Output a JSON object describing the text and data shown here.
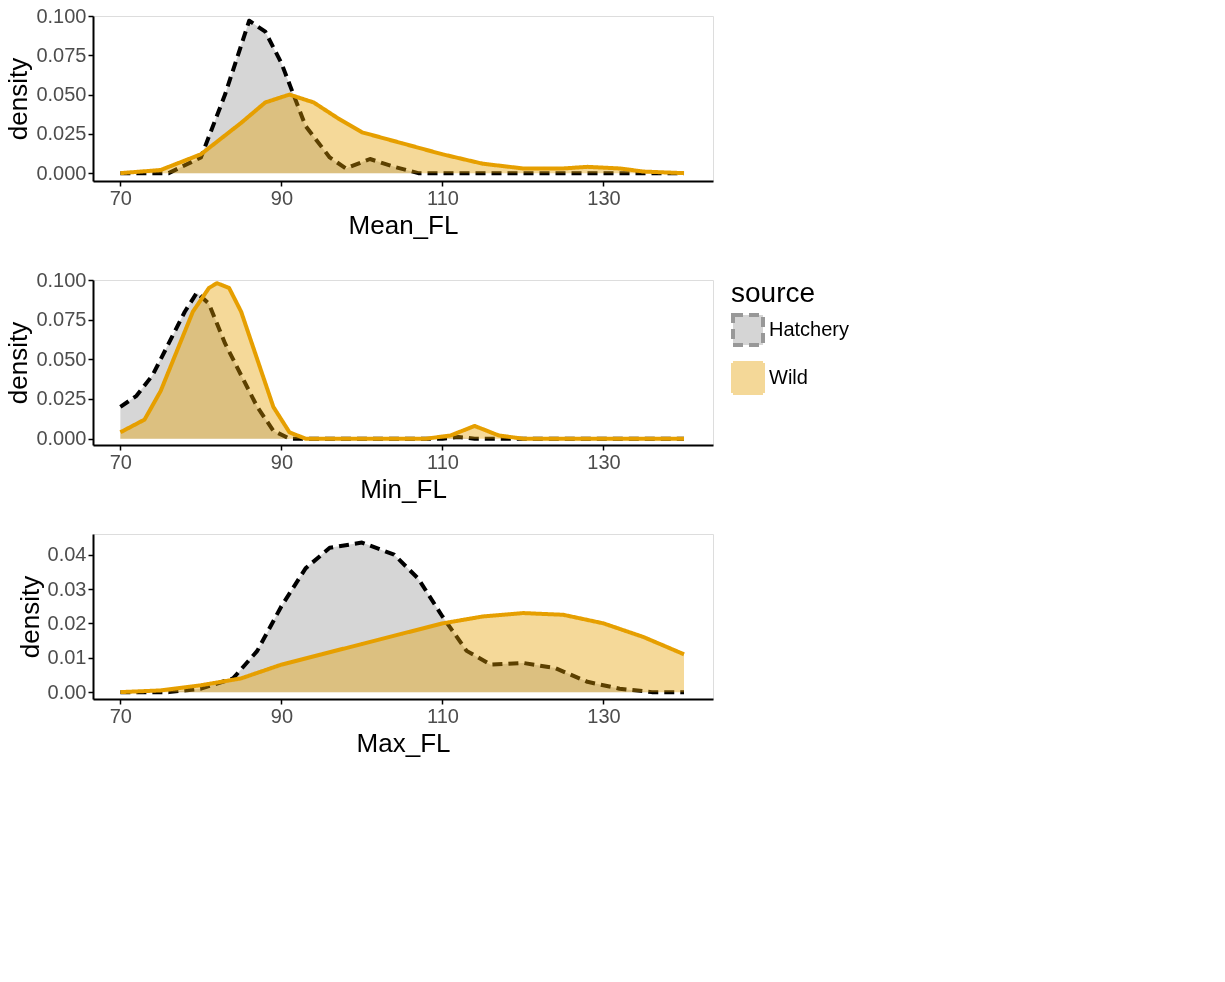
{
  "chart_data": [
    {
      "type": "area",
      "xlabel": "Mean_FL",
      "ylabel": "density",
      "xlim": [
        66.6,
        143.6
      ],
      "xticks": [
        70,
        90,
        110,
        130
      ],
      "ylim": [
        -0.005,
        0.1
      ],
      "yticks": [
        {
          "value": 0,
          "label": "0.000"
        },
        0.025,
        {
          "value": 0.05,
          "label": "0.050"
        },
        0.075,
        {
          "value": 0.1,
          "label": "0.100"
        }
      ],
      "grid": false,
      "series": [
        {
          "color": "#999999",
          "line_style": "dashed",
          "x": [
            70,
            76,
            80,
            83,
            86,
            88,
            90,
            93,
            96,
            98,
            101,
            104,
            107,
            115,
            125,
            140
          ],
          "values": [
            0,
            0,
            0.01,
            0.05,
            0.097,
            0.09,
            0.07,
            0.03,
            0.01,
            0.003,
            0.009,
            0.004,
            0,
            0,
            0,
            0
          ]
        },
        {
          "color": "#e69f00",
          "line_style": "solid",
          "x": [
            70,
            75,
            80,
            85,
            88,
            91,
            94,
            97,
            100,
            105,
            110,
            115,
            120,
            125,
            128,
            132,
            135,
            140
          ],
          "values": [
            0,
            0.002,
            0.012,
            0.032,
            0.045,
            0.05,
            0.045,
            0.035,
            0.026,
            0.019,
            0.012,
            0.006,
            0.003,
            0.003,
            0.004,
            0.003,
            0.001,
            0
          ]
        }
      ]
    },
    {
      "type": "area",
      "xlabel": "Min_FL",
      "ylabel": "density",
      "xlim": [
        66.6,
        143.6
      ],
      "xticks": [
        70,
        90,
        110,
        130
      ],
      "ylim": [
        -0.004,
        0.1
      ],
      "yticks": [
        {
          "value": 0,
          "label": "0.000"
        },
        0.025,
        {
          "value": 0.05,
          "label": "0.050"
        },
        0.075,
        {
          "value": 0.1,
          "label": "0.100"
        }
      ],
      "grid": false,
      "legend": "right",
      "legend_title": "source",
      "series": [
        {
          "name": "Hatchery",
          "color": "#999999",
          "line_style": "dashed",
          "x": [
            70,
            72,
            74,
            76,
            78,
            79.5,
            81,
            83,
            85,
            87,
            89,
            91,
            110,
            112,
            114,
            116,
            140
          ],
          "values": [
            0.02,
            0.027,
            0.04,
            0.06,
            0.08,
            0.092,
            0.085,
            0.06,
            0.04,
            0.02,
            0.005,
            0,
            0,
            0.001,
            0,
            0,
            0
          ]
        },
        {
          "name": "Wild",
          "color": "#e69f00",
          "line_style": "solid",
          "x": [
            70,
            73,
            75,
            77,
            79,
            81,
            82,
            83.5,
            85,
            87,
            89,
            91,
            93,
            108,
            111,
            114,
            117,
            120,
            140
          ],
          "values": [
            0.004,
            0.012,
            0.03,
            0.055,
            0.08,
            0.095,
            0.098,
            0.095,
            0.08,
            0.05,
            0.02,
            0.004,
            0,
            0,
            0.002,
            0.008,
            0.002,
            0,
            0
          ]
        }
      ]
    },
    {
      "type": "area",
      "xlabel": "Max_FL",
      "ylabel": "density",
      "xlim": [
        66.6,
        143.6
      ],
      "xticks": [
        70,
        90,
        110,
        130
      ],
      "ylim": [
        -0.002,
        0.046
      ],
      "yticks": [
        {
          "value": 0,
          "label": "0.00"
        },
        0.01,
        0.02,
        0.03,
        0.04
      ],
      "grid": false,
      "series": [
        {
          "color": "#999999",
          "line_style": "dashed",
          "x": [
            70,
            76,
            80,
            84,
            87,
            90,
            93,
            96,
            100,
            104,
            107,
            110,
            113,
            116,
            120,
            124,
            128,
            132,
            136,
            140
          ],
          "values": [
            0,
            0,
            0.001,
            0.004,
            0.012,
            0.025,
            0.036,
            0.042,
            0.0435,
            0.04,
            0.033,
            0.022,
            0.012,
            0.008,
            0.0085,
            0.007,
            0.003,
            0.001,
            0,
            0
          ]
        },
        {
          "color": "#e69f00",
          "line_style": "solid",
          "x": [
            70,
            75,
            80,
            85,
            90,
            95,
            100,
            105,
            110,
            115,
            120,
            125,
            130,
            135,
            140
          ],
          "values": [
            0,
            0.0005,
            0.002,
            0.004,
            0.008,
            0.011,
            0.014,
            0.017,
            0.02,
            0.022,
            0.023,
            0.0225,
            0.02,
            0.016,
            0.011
          ]
        }
      ]
    }
  ]
}
